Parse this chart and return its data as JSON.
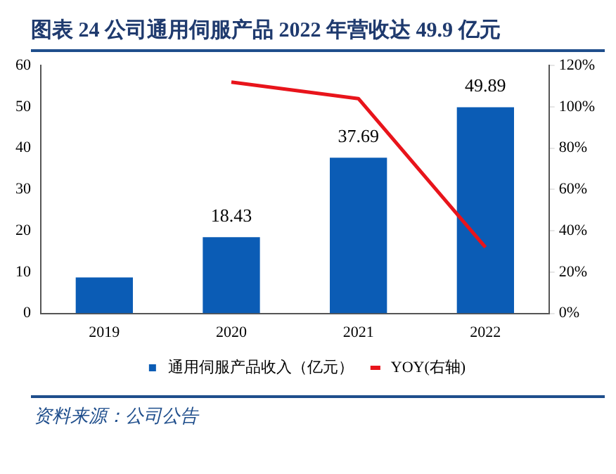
{
  "chart_data": {
    "type": "bar",
    "title": "图表 24  公司通用伺服产品 2022 年营收达 49.9 亿元",
    "categories": [
      "2019",
      "2020",
      "2021",
      "2022"
    ],
    "series": [
      {
        "name": "通用伺服产品收入（亿元）",
        "color": "#0b5cb5",
        "values": [
          8.7,
          18.43,
          37.69,
          49.89
        ],
        "value_labels": [
          null,
          "18.43",
          "37.69",
          "49.89"
        ]
      },
      {
        "name": "YOY(右轴)",
        "type": "line",
        "axis": "y2",
        "color": "#e8141b",
        "values": [
          null,
          112,
          104,
          32
        ]
      }
    ],
    "ylim": [
      0,
      60
    ],
    "yticks": [
      0,
      10,
      20,
      30,
      40,
      50,
      60
    ],
    "y2lim": [
      0,
      120
    ],
    "y2ticks": [
      {
        "value": 0,
        "label": "0%"
      },
      {
        "value": 20,
        "label": "20%"
      },
      {
        "value": 40,
        "label": "40%"
      },
      {
        "value": 60,
        "label": "60%"
      },
      {
        "value": 80,
        "label": "80%"
      },
      {
        "value": 100,
        "label": "100%"
      },
      {
        "value": 120,
        "label": "120%"
      }
    ],
    "legend": "bottom",
    "marker": "none",
    "annotations": [
      "资料来源：公司公告"
    ]
  }
}
